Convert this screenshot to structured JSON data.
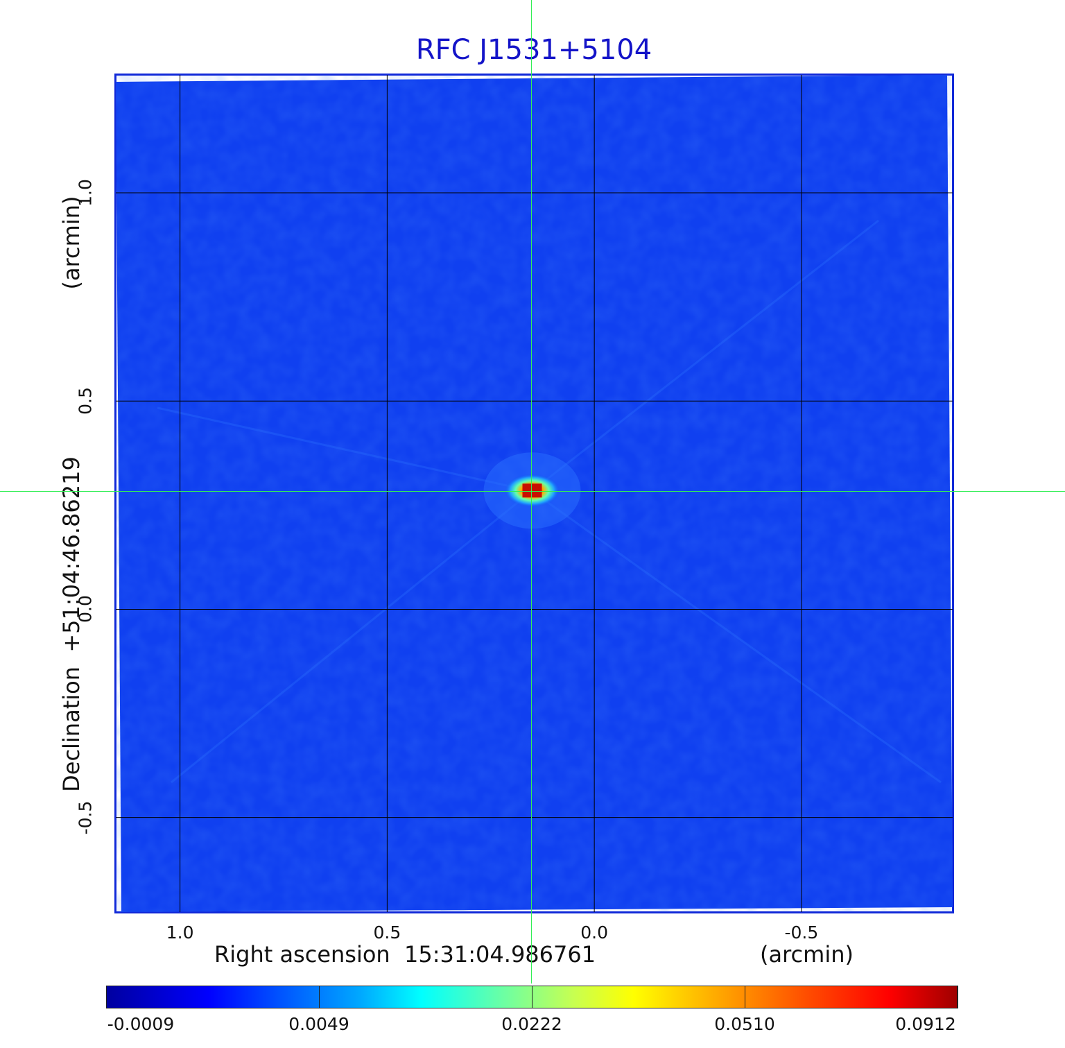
{
  "title": "RFC J1531+5104",
  "x_axis": {
    "label": "Right ascension  15:31:04.986761",
    "unit": "(arcmin)",
    "ticks": [
      "1.0",
      "0.5",
      "0.0",
      "-0.5"
    ],
    "tick_values": [
      1.0,
      0.5,
      0.0,
      -0.5
    ],
    "range": [
      1.155,
      -0.865
    ]
  },
  "y_axis": {
    "label": "Declination  +51:04:46.86219",
    "unit": "(arcmin)",
    "ticks": [
      "1.0",
      "0.5",
      "0.0",
      "-0.5"
    ],
    "tick_values": [
      1.0,
      0.5,
      0.0,
      -0.5
    ],
    "range": [
      -0.727,
      1.283
    ]
  },
  "source_position": {
    "ra_offset": 0.15,
    "dec_offset": 0.285
  },
  "colorbar": {
    "ticks": [
      "-0.0009",
      "0.0049",
      "0.0222",
      "0.0510",
      "0.0912"
    ],
    "colors": [
      "#0000a0",
      "#0000ff",
      "#00ffff",
      "#ffff00",
      "#ff0000",
      "#a00000"
    ]
  },
  "colors": {
    "background_map": "#1040f0",
    "frame": "#1028d8",
    "title": "#1414c8",
    "crosshair": "#33ee55",
    "grid": "#000000"
  }
}
